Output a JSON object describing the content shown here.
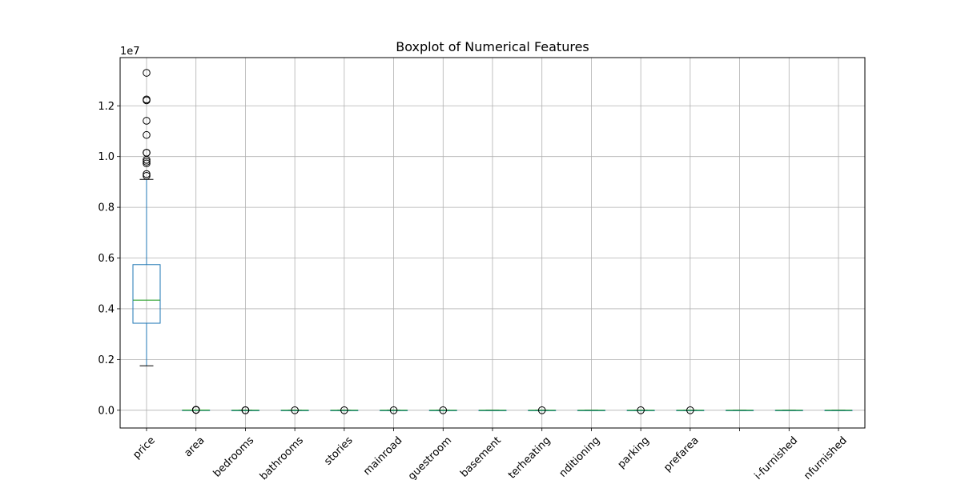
{
  "chart_data": {
    "type": "boxplot",
    "title": "Boxplot of Numerical Features",
    "y_multiplier_label": "1e7",
    "ylim": [
      -700000,
      13900000
    ],
    "y_ticks": [
      0,
      2000000,
      4000000,
      6000000,
      8000000,
      10000000,
      12000000
    ],
    "y_tick_labels": [
      "0.0",
      "0.2",
      "0.4",
      "0.6",
      "0.8",
      "1.0",
      "1.2"
    ],
    "categories": [
      "price",
      "area",
      "bedrooms",
      "bathrooms",
      "stories",
      "mainroad",
      "guestroom",
      "basement",
      "hotwaterheating",
      "airconditioning",
      "parking",
      "prefarea",
      "",
      "semi-furnished",
      "unfurnished"
    ],
    "category_labels_visible": [
      "price",
      "area",
      "bedrooms",
      "bathrooms",
      "stories",
      "mainroad",
      "guestroom",
      "basement",
      "terheating",
      "nditioning",
      "parking",
      "prefarea",
      "",
      "i-furnished",
      "nfurnished"
    ],
    "boxes": [
      {
        "category": "price",
        "whisker_low": 1750000,
        "q1": 3430000,
        "median": 4340000,
        "q3": 5740000,
        "whisker_high": 9100000,
        "outliers": [
          13300000,
          12250000,
          12215000,
          11410000,
          10850000,
          10150000,
          10150000,
          9870000,
          9800000,
          9730000,
          9310000,
          9240000
        ]
      },
      {
        "category": "area",
        "whisker_low": 1650,
        "q1": 3600,
        "median": 4600,
        "q3": 6360,
        "whisker_high": 10500,
        "outliers": [
          16200,
          15600,
          13200,
          12900
        ]
      },
      {
        "category": "bedrooms",
        "whisker_low": 1,
        "q1": 2,
        "median": 3,
        "q3": 3,
        "whisker_high": 4,
        "outliers": [
          5,
          6
        ]
      },
      {
        "category": "bathrooms",
        "whisker_low": 1,
        "q1": 1,
        "median": 1,
        "q3": 2,
        "whisker_high": 3,
        "outliers": [
          4
        ]
      },
      {
        "category": "stories",
        "whisker_low": 1,
        "q1": 1,
        "median": 2,
        "q3": 2,
        "whisker_high": 3,
        "outliers": [
          4
        ]
      },
      {
        "category": "mainroad",
        "whisker_low": 1,
        "q1": 1,
        "median": 1,
        "q3": 1,
        "whisker_high": 1,
        "outliers": [
          0
        ]
      },
      {
        "category": "guestroom",
        "whisker_low": 0,
        "q1": 0,
        "median": 0,
        "q3": 0,
        "whisker_high": 0,
        "outliers": [
          1
        ]
      },
      {
        "category": "basement",
        "whisker_low": 0,
        "q1": 0,
        "median": 0,
        "q3": 1,
        "whisker_high": 1,
        "outliers": []
      },
      {
        "category": "hotwaterheating",
        "whisker_low": 0,
        "q1": 0,
        "median": 0,
        "q3": 0,
        "whisker_high": 0,
        "outliers": [
          1
        ]
      },
      {
        "category": "airconditioning",
        "whisker_low": 0,
        "q1": 0,
        "median": 0,
        "q3": 1,
        "whisker_high": 1,
        "outliers": []
      },
      {
        "category": "parking",
        "whisker_low": 0,
        "q1": 0,
        "median": 0,
        "q3": 1,
        "whisker_high": 2,
        "outliers": [
          3
        ]
      },
      {
        "category": "prefarea",
        "whisker_low": 0,
        "q1": 0,
        "median": 0,
        "q3": 0,
        "whisker_high": 0,
        "outliers": [
          1
        ]
      },
      {
        "category": "",
        "whisker_low": 0,
        "q1": 0,
        "median": 0,
        "q3": 1,
        "whisker_high": 1,
        "outliers": []
      },
      {
        "category": "semi-furnished",
        "whisker_low": 0,
        "q1": 0,
        "median": 0,
        "q3": 1,
        "whisker_high": 1,
        "outliers": []
      },
      {
        "category": "unfurnished",
        "whisker_low": 0,
        "q1": 0,
        "median": 0,
        "q3": 1,
        "whisker_high": 1,
        "outliers": []
      }
    ],
    "grid": true,
    "colors": {
      "box": "#1f77b4",
      "median": "#2ca02c",
      "whisker": "#1f77b4",
      "cap": "#000000",
      "outlier": "#000000",
      "grid": "#b0b0b0",
      "axes": "#000000"
    }
  }
}
